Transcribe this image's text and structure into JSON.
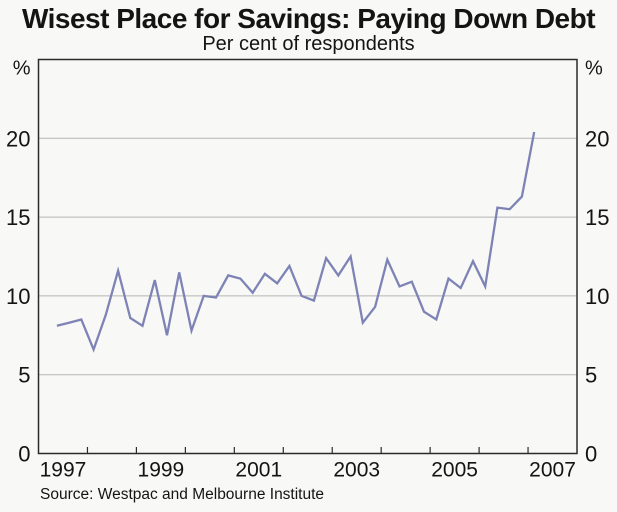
{
  "page": {
    "title": "Wisest Place for Savings: Paying Down Debt",
    "subtitle": "Per cent of respondents",
    "source": "Source: Westpac and Melbourne Institute",
    "unit_left": "%",
    "unit_right": "%"
  },
  "colors": {
    "line": "#7e83b6",
    "grid": "#b5b5b5",
    "frame": "#2b2b2b",
    "background": "#f8f8f6",
    "text": "#141414"
  },
  "chart_data": {
    "type": "line",
    "title": "Wisest Place for Savings: Paying Down Debt",
    "subtitle": "Per cent of respondents",
    "source": "Source: Westpac and Melbourne Institute",
    "ylabel": "%",
    "xlim": [
      1997,
      2008
    ],
    "ylim": [
      0,
      25
    ],
    "yticks": [
      0,
      5,
      10,
      15,
      20
    ],
    "ygridlines": [
      5,
      10,
      15,
      20
    ],
    "xticks": [
      1998,
      1999,
      2000,
      2001,
      2002,
      2003,
      2004,
      2005,
      2006,
      2007
    ],
    "xtick_labels": [
      {
        "label": "1997",
        "x": 1997.5
      },
      {
        "label": "1999",
        "x": 1999.5
      },
      {
        "label": "2001",
        "x": 2001.5
      },
      {
        "label": "2003",
        "x": 2003.5
      },
      {
        "label": "2005",
        "x": 2005.5
      },
      {
        "label": "2007",
        "x": 2007.5
      }
    ],
    "grid": true,
    "legend": "none",
    "series": [
      {
        "name": "Paying down debt (per cent of respondents)",
        "periods": [
          "1997Q2",
          "1997Q3",
          "1997Q4",
          "1998Q1",
          "1998Q2",
          "1998Q3",
          "1998Q4",
          "1999Q1",
          "1999Q2",
          "1999Q3",
          "1999Q4",
          "2000Q1",
          "2000Q2",
          "2000Q3",
          "2000Q4",
          "2001Q1",
          "2001Q2",
          "2001Q3",
          "2001Q4",
          "2002Q1",
          "2002Q2",
          "2002Q3",
          "2002Q4",
          "2003Q1",
          "2003Q2",
          "2003Q3",
          "2003Q4",
          "2004Q1",
          "2004Q2",
          "2004Q3",
          "2004Q4",
          "2005Q1",
          "2005Q2",
          "2005Q3",
          "2005Q4",
          "2006Q1",
          "2006Q2",
          "2006Q3",
          "2006Q4",
          "2007Q1"
        ],
        "x": [
          1997.375,
          1997.625,
          1997.875,
          1998.125,
          1998.375,
          1998.625,
          1998.875,
          1999.125,
          1999.375,
          1999.625,
          1999.875,
          2000.125,
          2000.375,
          2000.625,
          2000.875,
          2001.125,
          2001.375,
          2001.625,
          2001.875,
          2002.125,
          2002.375,
          2002.625,
          2002.875,
          2003.125,
          2003.375,
          2003.625,
          2003.875,
          2004.125,
          2004.375,
          2004.625,
          2004.875,
          2005.125,
          2005.375,
          2005.625,
          2005.875,
          2006.125,
          2006.375,
          2006.625,
          2006.875,
          2007.125
        ],
        "values": [
          8.1,
          8.3,
          8.5,
          6.6,
          8.8,
          11.6,
          8.6,
          8.1,
          11.0,
          7.5,
          11.5,
          7.8,
          10.0,
          9.9,
          11.3,
          11.1,
          10.2,
          11.4,
          10.8,
          11.9,
          10.0,
          9.7,
          12.4,
          11.3,
          12.5,
          8.3,
          9.3,
          12.3,
          10.6,
          10.9,
          9.0,
          8.5,
          11.1,
          10.5,
          12.2,
          10.6,
          15.6,
          15.5,
          16.3,
          20.4
        ]
      }
    ]
  }
}
